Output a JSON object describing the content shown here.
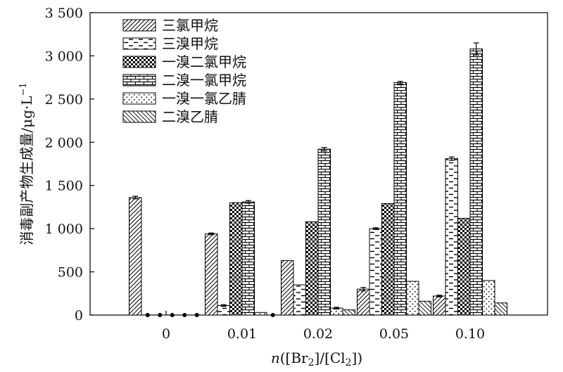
{
  "chart_data": {
    "type": "bar",
    "xlabel_parts": [
      "n",
      "([Br",
      "2",
      "]/[Cl",
      "2",
      "])"
    ],
    "ylabel": "消毒副产物生成量/μg·L",
    "ylabel_sup": "−1",
    "ylim": [
      0,
      3500
    ],
    "yticks": [
      0,
      500,
      1000,
      1500,
      2000,
      2500,
      3000,
      3500
    ],
    "ytick_labels": [
      "0",
      "500",
      "1 000",
      "1 500",
      "2 000",
      "2 500",
      "3 000",
      "3 500"
    ],
    "categories": [
      "0",
      "0.01",
      "0.02",
      "0.05",
      "0.10"
    ],
    "legend_position": "top-left",
    "series": [
      {
        "name": "三氯甲烷",
        "values": [
          1360,
          940,
          630,
          300,
          220
        ],
        "errors": [
          15,
          10,
          0,
          20,
          10
        ],
        "pattern": "hatch-forward"
      },
      {
        "name": "三溴甲烷",
        "values": [
          0,
          110,
          350,
          1000,
          1810
        ],
        "errors": [
          0,
          10,
          0,
          10,
          20
        ],
        "pattern": "dash"
      },
      {
        "name": "一溴二氯甲烷",
        "values": [
          0,
          1300,
          1080,
          1290,
          1120
        ],
        "errors": [
          0,
          0,
          0,
          0,
          0
        ],
        "pattern": "checker"
      },
      {
        "name": "二溴一氯甲烷",
        "values": [
          0,
          1310,
          1920,
          2690,
          3080
        ],
        "errors": [
          0,
          15,
          20,
          15,
          70
        ],
        "pattern": "brick"
      },
      {
        "name": "一溴一氯乙腈",
        "values": [
          0,
          30,
          80,
          390,
          400
        ],
        "errors": [
          0,
          0,
          10,
          0,
          0
        ],
        "pattern": "dots"
      },
      {
        "name": "二溴乙腈",
        "values": [
          0,
          0,
          60,
          160,
          140
        ],
        "errors": [
          0,
          0,
          0,
          0,
          0
        ],
        "pattern": "hatch-back"
      }
    ]
  }
}
